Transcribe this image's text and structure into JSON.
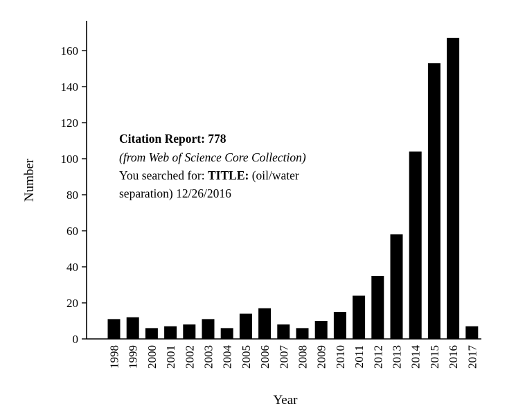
{
  "chart_data": {
    "type": "bar",
    "title": "",
    "xlabel": "Year",
    "ylabel": "Number",
    "ylim": [
      0,
      170
    ],
    "yticks": [
      0,
      20,
      40,
      60,
      80,
      100,
      120,
      140,
      160
    ],
    "categories": [
      "1998",
      "1999",
      "2000",
      "2001",
      "2002",
      "2003",
      "2004",
      "2005",
      "2006",
      "2007",
      "2008",
      "2009",
      "2010",
      "2011",
      "2012",
      "2013",
      "2014",
      "2015",
      "2016",
      "2017"
    ],
    "values": [
      11,
      12,
      6,
      7,
      8,
      11,
      6,
      14,
      17,
      8,
      6,
      10,
      15,
      24,
      35,
      58,
      104,
      153,
      167,
      7
    ],
    "bar_color": "#000000",
    "annotation": {
      "title": "Citation Report: 778",
      "source": "(from Web of Science Core Collection)",
      "search_prefix": "You searched for: ",
      "search_field": "TITLE:",
      "search_term_start": " (oil/water",
      "search_term_end": "separation) 12/26/2016"
    }
  }
}
